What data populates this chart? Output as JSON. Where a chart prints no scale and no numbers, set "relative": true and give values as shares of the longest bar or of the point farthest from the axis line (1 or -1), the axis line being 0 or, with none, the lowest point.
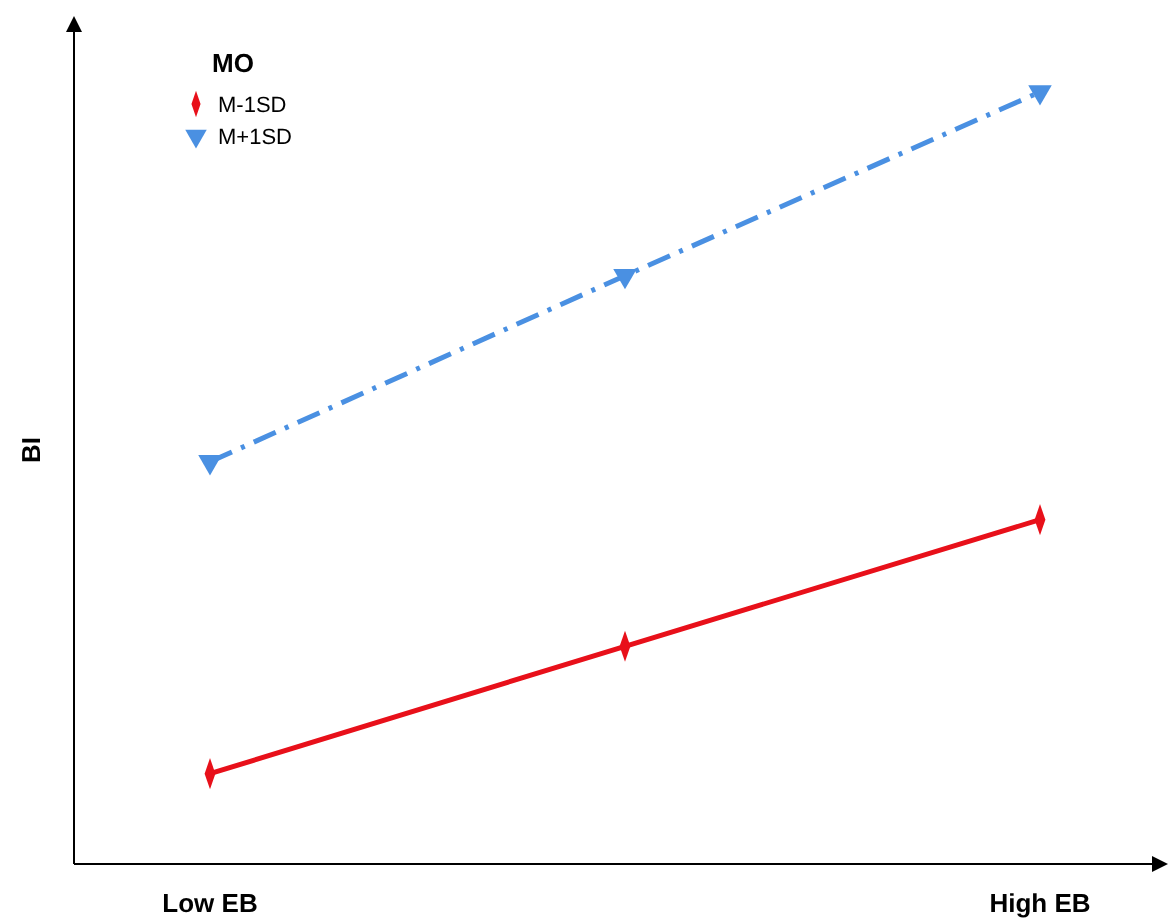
{
  "chart_data": {
    "type": "line",
    "relative": true,
    "ylabel": "BI",
    "legend_title": "MO",
    "legend": "top left",
    "categories": [
      "Low EB",
      null,
      "High EB"
    ],
    "series": [
      {
        "name": "M-1SD",
        "color": "#e8101a",
        "values": [
          0.117,
          0.282,
          0.446
        ],
        "marker": "diamond",
        "line_style": "solid"
      },
      {
        "name": "M+1SD",
        "color": "#4a90e2",
        "values": [
          0.521,
          0.762,
          1
        ],
        "marker": "triangle",
        "line_style": "dashdot"
      }
    ]
  }
}
